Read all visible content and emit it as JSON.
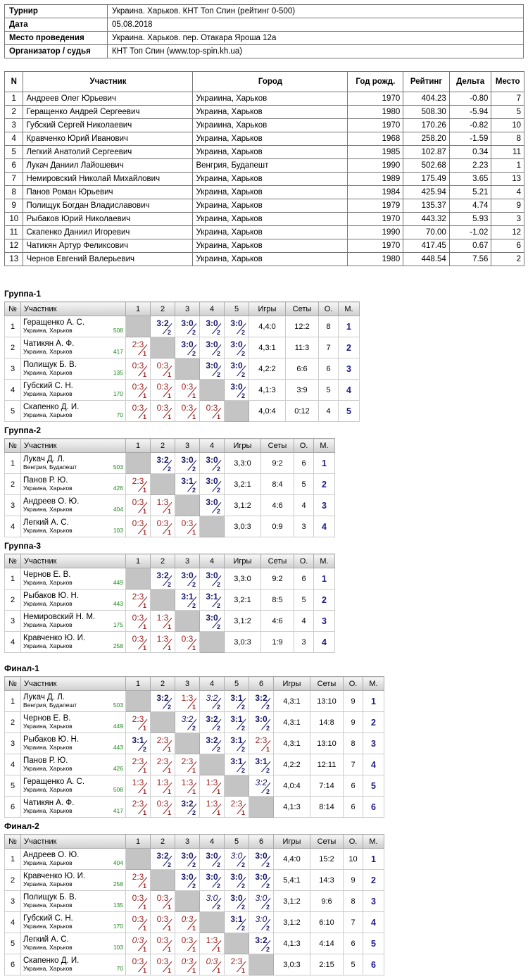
{
  "info": [
    {
      "key": "Турнир",
      "value": "Украина. Харьков. КНТ Топ Спин (рейтинг 0-500)"
    },
    {
      "key": "Дата",
      "value": "05.08.2018"
    },
    {
      "key": "Место проведения",
      "value": "Украина. Харьков. пер. Отакара Яроша 12а"
    },
    {
      "key": "Организатор / судья",
      "value": "КНТ Топ Спин (www.top-spin.kh.ua)"
    }
  ],
  "participants_headers": [
    "N",
    "Участник",
    "Город",
    "Год рожд.",
    "Рейтинг",
    "Дельта",
    "Место"
  ],
  "participants": [
    [
      "1",
      "Андреев Олег Юрьевич",
      "Украиина, Харьков",
      "1970",
      "404.23",
      "-0.80",
      "7"
    ],
    [
      "2",
      "Геращенко Андрей Сергеевич",
      "Украина, Харьков",
      "1980",
      "508.30",
      "-5.94",
      "5"
    ],
    [
      "3",
      "Губский Сергей Николаевич",
      "Украиина, Харьков",
      "1970",
      "170.26",
      "-0.82",
      "10"
    ],
    [
      "4",
      "Кравченко Юрий Иванович",
      "Украина, Харьков",
      "1968",
      "258.20",
      "-1.59",
      "8"
    ],
    [
      "5",
      "Легкий Анатолий Сергеевич",
      "Украина, Харьков",
      "1985",
      "102.87",
      "0.34",
      "11"
    ],
    [
      "6",
      "Лукач Даниил Лайошевич",
      "Венгрия, Будапешт",
      "1990",
      "502.68",
      "2.23",
      "1"
    ],
    [
      "7",
      "Немировский Николай Михайлович",
      "Украина, Харьков",
      "1989",
      "175.49",
      "3.65",
      "13"
    ],
    [
      "8",
      "Панов Роман Юрьевич",
      "Украина, Харьков",
      "1984",
      "425.94",
      "5.21",
      "4"
    ],
    [
      "9",
      "Полищук Богдан Владиславович",
      "Украина, Харьков",
      "1979",
      "135.37",
      "4.74",
      "9"
    ],
    [
      "10",
      "Рыбаков Юрий Николаевич",
      "Украина, Харьков",
      "1970",
      "443.32",
      "5.93",
      "3"
    ],
    [
      "11",
      "Скапенко Даниил Игоревич",
      "Украина, Харьков",
      "1990",
      "70.00",
      "-1.02",
      "12"
    ],
    [
      "12",
      "Чатикян Артур Феликсович",
      "Украина, Харьков",
      "1970",
      "417.45",
      "0.67",
      "6"
    ],
    [
      "13",
      "Чернов Евгений Валерьевич",
      "Украина, Харьков",
      "1980",
      "448.54",
      "7.56",
      "2"
    ]
  ],
  "group_headers": {
    "num": "№",
    "name": "Участник",
    "games": "Игры",
    "sets": "Сеты",
    "points": "О.",
    "place": "М."
  },
  "groups": [
    {
      "title": "Группа-1",
      "rows": [
        {
          "n": "1",
          "name": "Геращенко А. С.",
          "city": "Украина, Харьков",
          "rating": "508",
          "cells": [
            "X",
            "W3:2",
            "W3:0",
            "W3:0",
            "W3:0"
          ],
          "games": "4,4:0",
          "sets": "12:2",
          "pts": "8",
          "place": "1"
        },
        {
          "n": "2",
          "name": "Чатикян А. Ф.",
          "city": "Украина, Харьков",
          "rating": "417",
          "cells": [
            "L2:3",
            "X",
            "W3:0",
            "W3:0",
            "W3:0"
          ],
          "games": "4,3:1",
          "sets": "11:3",
          "pts": "7",
          "place": "2"
        },
        {
          "n": "3",
          "name": "Полищук Б. В.",
          "city": "Украина, Харьков",
          "rating": "135",
          "cells": [
            "L0:3",
            "L0:3",
            "X",
            "W3:0",
            "W3:0"
          ],
          "games": "4,2:2",
          "sets": "6:6",
          "pts": "6",
          "place": "3"
        },
        {
          "n": "4",
          "name": "Губский С. Н.",
          "city": "Украина, Харьков",
          "rating": "170",
          "cells": [
            "L0:3",
            "L0:3",
            "L0:3",
            "X",
            "W3:0"
          ],
          "games": "4,1:3",
          "sets": "3:9",
          "pts": "5",
          "place": "4"
        },
        {
          "n": "5",
          "name": "Скапенко Д. И.",
          "city": "Украина, Харьков",
          "rating": "70",
          "cells": [
            "L0:3",
            "L0:3",
            "L0:3",
            "L0:3",
            "X"
          ],
          "games": "4,0:4",
          "sets": "0:12",
          "pts": "4",
          "place": "5"
        }
      ]
    },
    {
      "title": "Группа-2",
      "rows": [
        {
          "n": "1",
          "name": "Лукач Д. Л.",
          "city": "Венгрия, Будапешт",
          "rating": "503",
          "cells": [
            "X",
            "W3:2",
            "W3:0",
            "W3:0"
          ],
          "games": "3,3:0",
          "sets": "9:2",
          "pts": "6",
          "place": "1"
        },
        {
          "n": "2",
          "name": "Панов Р. Ю.",
          "city": "Украина, Харьков",
          "rating": "426",
          "cells": [
            "L2:3",
            "X",
            "W3:1",
            "W3:0"
          ],
          "games": "3,2:1",
          "sets": "8:4",
          "pts": "5",
          "place": "2"
        },
        {
          "n": "3",
          "name": "Андреев О. Ю.",
          "city": "Украина, Харьков",
          "rating": "404",
          "cells": [
            "L0:3",
            "L1:3",
            "X",
            "W3:0"
          ],
          "games": "3,1:2",
          "sets": "4:6",
          "pts": "4",
          "place": "3"
        },
        {
          "n": "4",
          "name": "Легкий А. С.",
          "city": "Украина, Харьков",
          "rating": "103",
          "cells": [
            "L0:3",
            "L0:3",
            "L0:3",
            "X"
          ],
          "games": "3,0:3",
          "sets": "0:9",
          "pts": "3",
          "place": "4"
        }
      ]
    },
    {
      "title": "Группа-3",
      "rows": [
        {
          "n": "1",
          "name": "Чернов Е. В.",
          "city": "Украина, Харьков",
          "rating": "449",
          "cells": [
            "X",
            "W3:2",
            "W3:0",
            "W3:0"
          ],
          "games": "3,3:0",
          "sets": "9:2",
          "pts": "6",
          "place": "1"
        },
        {
          "n": "2",
          "name": "Рыбаков Ю. Н.",
          "city": "Украина, Харьков",
          "rating": "443",
          "cells": [
            "L2:3",
            "X",
            "W3:1",
            "W3:1"
          ],
          "games": "3,2:1",
          "sets": "8:5",
          "pts": "5",
          "place": "2"
        },
        {
          "n": "3",
          "name": "Немировский Н. М.",
          "city": "Украина, Харьков",
          "rating": "175",
          "cells": [
            "L0:3",
            "L1:3",
            "X",
            "W3:0"
          ],
          "games": "3,1:2",
          "sets": "4:6",
          "pts": "4",
          "place": "3"
        },
        {
          "n": "4",
          "name": "Кравченко Ю. И.",
          "city": "Украина, Харьков",
          "rating": "258",
          "cells": [
            "L0:3",
            "L1:3",
            "L0:3",
            "X"
          ],
          "games": "3,0:3",
          "sets": "1:9",
          "pts": "3",
          "place": "4"
        }
      ]
    },
    {
      "title": "Финал-1",
      "rows": [
        {
          "n": "1",
          "name": "Лукач Д. Л.",
          "city": "Венгрия, Будапешт",
          "rating": "503",
          "cells": [
            "X",
            "W3:2",
            "L1:3",
            "w3:2",
            "W3:1",
            "W3:2"
          ],
          "games": "4,3:1",
          "sets": "13:10",
          "pts": "9",
          "place": "1"
        },
        {
          "n": "2",
          "name": "Чернов Е. В.",
          "city": "Украина, Харьков",
          "rating": "449",
          "cells": [
            "L2:3",
            "X",
            "w3:2",
            "W3:2",
            "W3:1",
            "W3:0"
          ],
          "games": "4,3:1",
          "sets": "14:8",
          "pts": "9",
          "place": "2"
        },
        {
          "n": "3",
          "name": "Рыбаков Ю. Н.",
          "city": "Украина, Харьков",
          "rating": "443",
          "cells": [
            "W3:1",
            "L2:3",
            "X",
            "W3:2",
            "W3:1",
            "L2:3"
          ],
          "games": "4,3:1",
          "sets": "13:10",
          "pts": "8",
          "place": "3"
        },
        {
          "n": "4",
          "name": "Панов Р. Ю.",
          "city": "Украина, Харьков",
          "rating": "426",
          "cells": [
            "L2:3",
            "L2:3",
            "L2:3",
            "X",
            "W3:1",
            "W3:1"
          ],
          "games": "4,2:2",
          "sets": "12:11",
          "pts": "7",
          "place": "4"
        },
        {
          "n": "5",
          "name": "Геращенко А. С.",
          "city": "Украина, Харьков",
          "rating": "508",
          "cells": [
            "L1:3",
            "L1:3",
            "L1:3",
            "L1:3",
            "X",
            "w3:2"
          ],
          "games": "4,0:4",
          "sets": "7:14",
          "pts": "6",
          "place": "5"
        },
        {
          "n": "6",
          "name": "Чатикян А. Ф.",
          "city": "Украина, Харьков",
          "rating": "417",
          "cells": [
            "L2:3",
            "L0:3",
            "W3:2",
            "L1:3",
            "L2:3",
            "X"
          ],
          "games": "4,1:3",
          "sets": "8:14",
          "pts": "6",
          "place": "6"
        }
      ]
    },
    {
      "title": "Финал-2",
      "rows": [
        {
          "n": "1",
          "name": "Андреев О. Ю.",
          "city": "Украина, Харьков",
          "rating": "404",
          "cells": [
            "X",
            "W3:2",
            "W3:0",
            "W3:0",
            "w3:0",
            "W3:0"
          ],
          "games": "4,4:0",
          "sets": "15:2",
          "pts": "10",
          "place": "1"
        },
        {
          "n": "2",
          "name": "Кравченко Ю. И.",
          "city": "Украина, Харьков",
          "rating": "258",
          "cells": [
            "L2:3",
            "X",
            "W3:0",
            "W3:0",
            "W3:0",
            "W3:0"
          ],
          "games": "5,4:1",
          "sets": "14:3",
          "pts": "9",
          "place": "2"
        },
        {
          "n": "3",
          "name": "Полищук Б. В.",
          "city": "Украина, Харьков",
          "rating": "135",
          "cells": [
            "L0:3",
            "L0:3",
            "X",
            "w3:0",
            "W3:0",
            "w3:0"
          ],
          "games": "3,1:2",
          "sets": "9:6",
          "pts": "8",
          "place": "3"
        },
        {
          "n": "4",
          "name": "Губский С. Н.",
          "city": "Украина, Харьков",
          "rating": "170",
          "cells": [
            "L0:3",
            "L0:3",
            "l0:3",
            "X",
            "W3:1",
            "w3:0"
          ],
          "games": "3,1:2",
          "sets": "6:10",
          "pts": "7",
          "place": "4"
        },
        {
          "n": "5",
          "name": "Легкий А. С.",
          "city": "Украина, Харьков",
          "rating": "103",
          "cells": [
            "l0:3",
            "L0:3",
            "L0:3",
            "L1:3",
            "X",
            "W3:2"
          ],
          "games": "4,1:3",
          "sets": "4:14",
          "pts": "6",
          "place": "5"
        },
        {
          "n": "6",
          "name": "Скапенко Д. И.",
          "city": "Украина, Харьков",
          "rating": "70",
          "cells": [
            "L0:3",
            "L0:3",
            "l0:3",
            "l0:3",
            "L2:3",
            "X"
          ],
          "games": "3,0:3",
          "sets": "2:15",
          "pts": "5",
          "place": "6"
        }
      ]
    }
  ],
  "win_points": "2",
  "loss_points": "1"
}
